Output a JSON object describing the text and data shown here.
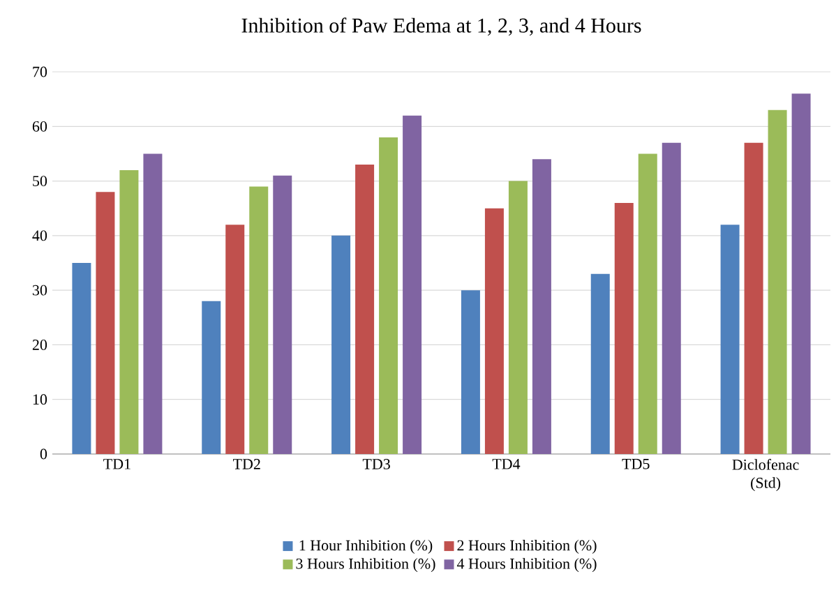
{
  "chart_data": {
    "type": "bar",
    "title": "Inhibition of Paw Edema at 1, 2, 3, and 4 Hours",
    "categories": [
      "TD1",
      "TD2",
      "TD3",
      "TD4",
      "TD5",
      "Diclofenac (Std)"
    ],
    "series": [
      {
        "name": "1 Hour Inhibition (%)",
        "color": "#4f81bd",
        "values": [
          35,
          28,
          40,
          30,
          33,
          42
        ]
      },
      {
        "name": "2 Hours Inhibition (%)",
        "color": "#c0504d",
        "values": [
          48,
          42,
          53,
          45,
          46,
          57
        ]
      },
      {
        "name": "3 Hours Inhibition (%)",
        "color": "#9bbb59",
        "values": [
          52,
          49,
          58,
          50,
          55,
          63
        ]
      },
      {
        "name": "4 Hours Inhibition (%)",
        "color": "#8064a2",
        "values": [
          55,
          51,
          62,
          54,
          57,
          66
        ]
      }
    ],
    "ylim": [
      0,
      70
    ],
    "yticks": [
      0,
      10,
      20,
      30,
      40,
      50,
      60,
      70
    ],
    "grid": "y",
    "legend": "bottom"
  }
}
